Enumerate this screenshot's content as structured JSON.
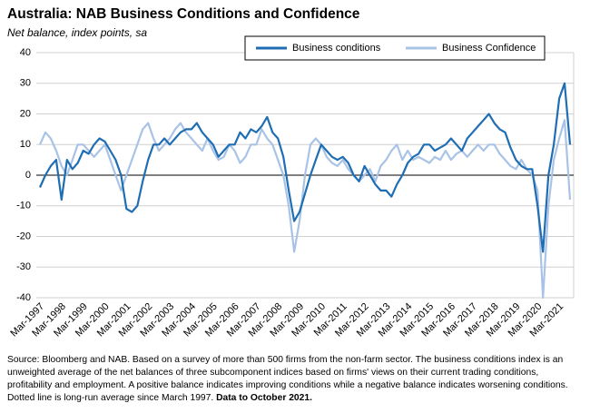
{
  "chart_data": {
    "type": "line",
    "title": "Australia: NAB Business Conditions and Confidence",
    "subtitle": "Net balance, index points, sa",
    "categories": [
      "Mar-1997",
      null,
      null,
      null,
      "Mar-1998",
      null,
      null,
      null,
      "Mar-1999",
      null,
      null,
      null,
      "Mar-2000",
      null,
      null,
      null,
      "Mar-2001",
      null,
      null,
      null,
      "Mar-2002",
      null,
      null,
      null,
      "Mar-2003",
      null,
      null,
      null,
      "Mar-2004",
      null,
      null,
      null,
      "Mar-2005",
      null,
      null,
      null,
      "Mar-2006",
      null,
      null,
      null,
      "Mar-2007",
      null,
      null,
      null,
      "Mar-2008",
      null,
      null,
      null,
      "Mar-2009",
      null,
      null,
      null,
      "Mar-2010",
      null,
      null,
      null,
      "Mar-2011",
      null,
      null,
      null,
      "Mar-2012",
      null,
      null,
      null,
      "Mar-2013",
      null,
      null,
      null,
      "Mar-2014",
      null,
      null,
      null,
      "Mar-2015",
      null,
      null,
      null,
      "Mar-2016",
      null,
      null,
      null,
      "Mar-2017",
      null,
      null,
      null,
      "Mar-2018",
      null,
      null,
      null,
      "Mar-2019",
      null,
      null,
      null,
      "Mar-2020",
      null,
      null,
      null,
      "Mar-2021",
      null,
      null
    ],
    "series": [
      {
        "name": "Business conditions",
        "color": "#1f6db2",
        "width": 2.2,
        "values": [
          -4,
          0,
          3,
          5,
          -8,
          5,
          2,
          4,
          8,
          7,
          10,
          12,
          11,
          8,
          5,
          0,
          -11,
          -12,
          -10,
          -2,
          5,
          10,
          10,
          12,
          10,
          12,
          14,
          15,
          15,
          17,
          14,
          12,
          10,
          6,
          8,
          10,
          10,
          14,
          12,
          15,
          14,
          16,
          19,
          14,
          12,
          6,
          -5,
          -15,
          -12,
          -6,
          0,
          5,
          10,
          8,
          6,
          5,
          6,
          4,
          0,
          -2,
          3,
          0,
          -3,
          -5,
          -5,
          -7,
          -3,
          0,
          4,
          6,
          7,
          10,
          10,
          8,
          9,
          10,
          12,
          10,
          8,
          12,
          14,
          16,
          18,
          20,
          17,
          15,
          14,
          9,
          5,
          3,
          2,
          2,
          -10,
          -25,
          0,
          10,
          25,
          30,
          10
        ]
      },
      {
        "name": "Business Confidence",
        "color": "#a9c3e6",
        "width": 2.2,
        "values": [
          10,
          14,
          12,
          8,
          3,
          0,
          5,
          10,
          10,
          8,
          6,
          8,
          10,
          5,
          0,
          -5,
          0,
          5,
          10,
          15,
          17,
          12,
          8,
          10,
          12,
          15,
          17,
          14,
          12,
          10,
          8,
          12,
          8,
          5,
          6,
          10,
          8,
          4,
          6,
          10,
          10,
          15,
          12,
          10,
          5,
          0,
          -10,
          -25,
          -15,
          0,
          10,
          12,
          10,
          6,
          4,
          3,
          5,
          2,
          0,
          -2,
          0,
          2,
          -2,
          3,
          5,
          8,
          10,
          5,
          8,
          5,
          6,
          5,
          4,
          6,
          5,
          8,
          5,
          7,
          8,
          6,
          8,
          10,
          8,
          10,
          10,
          7,
          5,
          3,
          2,
          5,
          2,
          0,
          -5,
          -40,
          -10,
          5,
          12,
          18,
          -8
        ]
      }
    ],
    "ylim": [
      -40,
      40
    ],
    "yticks": [
      -40,
      -30,
      -20,
      -10,
      0,
      10,
      20,
      30,
      40
    ],
    "grid": true,
    "legend": "top-right",
    "source": "Source: Bloomberg and NAB. Based on a survey of more than 500 firms from the non-farm sector.  The business conditions index is  an unweighted average of the net balances of three subcomponent indices based on firms' views on their current trading conditions, profitability and employment. A positive balance indicates improving conditions while a negative balance indicates worsening conditions.  Dotted line is long-run average since March 1997. ",
    "source_bold": "Data to October 2021."
  }
}
